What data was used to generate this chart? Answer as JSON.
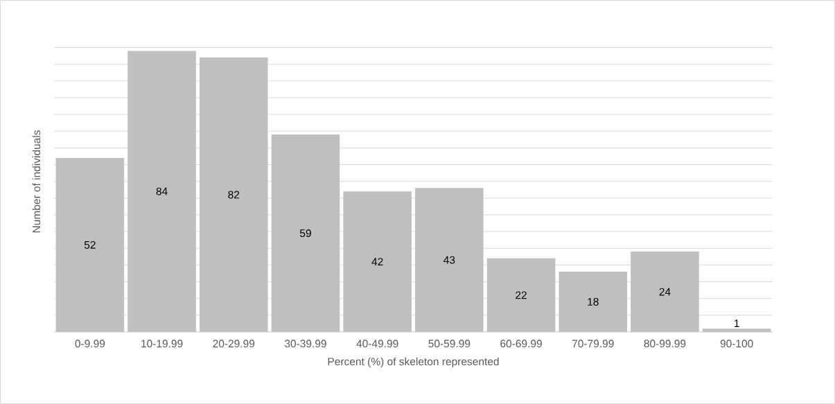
{
  "chart_data": {
    "type": "bar",
    "xlabel": "Percent (%) of skeleton represented",
    "ylabel": "Number of individuals",
    "categories": [
      "0-9.99",
      "10-19.99",
      "20-29.99",
      "30-39.99",
      "40-49.99",
      "50-59.99",
      "60-69.99",
      "70-79.99",
      "80-99.99",
      "90-100"
    ],
    "values": [
      52,
      84,
      82,
      59,
      42,
      43,
      22,
      18,
      24,
      1
    ],
    "color": "#bfbfbf",
    "grid": "y",
    "tick_labels": "x",
    "data_labels": true
  }
}
